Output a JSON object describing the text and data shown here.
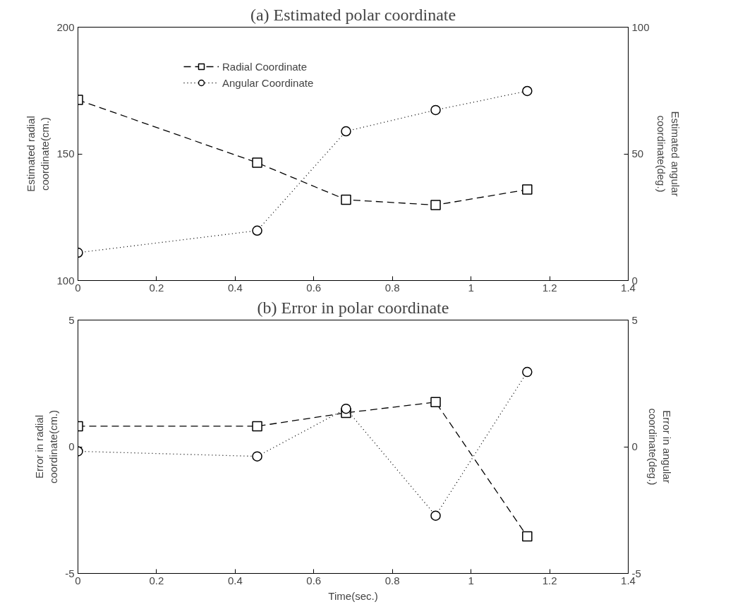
{
  "chart_data": [
    {
      "type": "line",
      "title": "(a) Estimated polar coordinate",
      "ylabel": "Estimated radial\ncoordinate(cm.)",
      "y2label": "Estimated angular\ncoordinate(deg.)",
      "x": [
        0,
        0.456,
        0.682,
        0.91,
        1.143
      ],
      "xlim": [
        0,
        1.4
      ],
      "xticks": [
        0,
        0.2,
        0.4,
        0.6,
        0.8,
        1,
        1.2,
        1.4
      ],
      "ylim": [
        100,
        200
      ],
      "yticks": [
        100,
        150,
        200
      ],
      "y2lim": [
        0,
        100
      ],
      "y2ticks": [
        0,
        50,
        100
      ],
      "grid": false,
      "legend": "top left",
      "series": [
        {
          "name": "Radial Coordinate",
          "color": "#000000",
          "marker": "square",
          "line_style": "dashed",
          "values": [
            171.3,
            146.5,
            131.9,
            129.8,
            135.9
          ]
        },
        {
          "name": "Angular Coordinate",
          "color": "#000000",
          "marker": "circle",
          "line_style": "dotted",
          "axis": "y2",
          "values": [
            11.0,
            19.7,
            58.9,
            67.3,
            74.8
          ]
        }
      ]
    },
    {
      "type": "line",
      "title": "(b) Error in polar coordinate",
      "xlabel": "Time(sec.)",
      "ylabel": "Error in radial\ncoordinate(cm.)",
      "y2label": "Error in angular\ncoordinate(deg.)",
      "x": [
        0,
        0.456,
        0.682,
        0.91,
        1.143
      ],
      "xlim": [
        0,
        1.4
      ],
      "xticks": [
        0,
        0.2,
        0.4,
        0.6,
        0.8,
        1,
        1.2,
        1.4
      ],
      "ylim": [
        -5,
        5
      ],
      "yticks": [
        -5,
        0,
        5
      ],
      "y2lim": [
        -5,
        5
      ],
      "y2ticks": [
        -5,
        0,
        5
      ],
      "grid": false,
      "series": [
        {
          "color": "#000000",
          "marker": "square",
          "line_style": "dashed",
          "values": [
            0.81,
            0.81,
            1.34,
            1.76,
            -3.54
          ]
        },
        {
          "color": "#000000",
          "marker": "circle",
          "line_style": "dotted",
          "axis": "y2",
          "values": [
            -0.18,
            -0.38,
            1.5,
            -2.72,
            2.95
          ]
        }
      ]
    }
  ]
}
